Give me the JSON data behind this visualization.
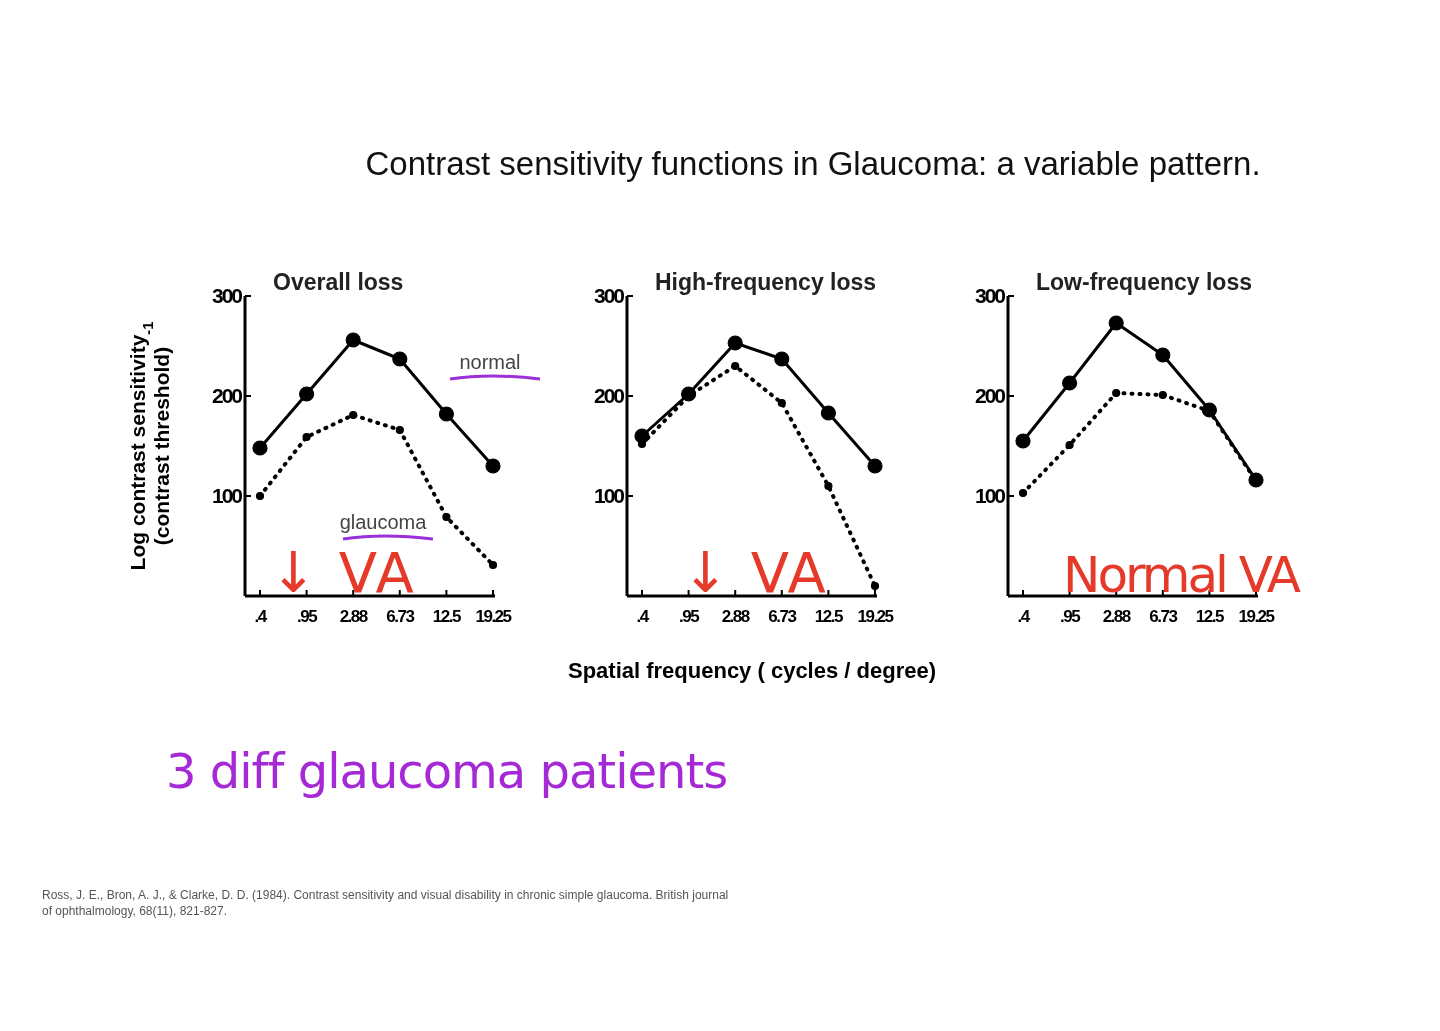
{
  "chart_data": [
    {
      "type": "line",
      "title": "Overall loss",
      "ylabel": "Log contrast sensitivity$_{-1}$\n(contrast threshold)",
      "categories": [
        ".4",
        ".95",
        "2.88",
        "6.73",
        "12.5",
        "19.25"
      ],
      "ylim": [
        0,
        300
      ],
      "yticks": [
        100,
        200,
        300
      ],
      "grid": false,
      "marker": "circle",
      "series": [
        {
          "name": "normal",
          "color": "#000000",
          "line_style": "solid",
          "values": [
            148,
            202,
            256,
            237,
            182,
            130
          ]
        },
        {
          "name": "glaucoma",
          "color": "#000000",
          "line_style": "dotted",
          "values": [
            100,
            159,
            181,
            166,
            79,
            31
          ]
        }
      ],
      "annotations": [
        "Contrast sensitivity functions in Glaucoma: a variable pattern.",
        "↓ VA",
        "3 diff glaucoma patients",
        "Ross, J. E., Bron, A. J., & Clarke, D. D. (1984). Contrast sensitivity and visual disability in chronic simple glaucoma. British journal of ophthalmology, 68(11), 821-827."
      ]
    },
    {
      "type": "line",
      "title": "High-frequency loss",
      "xlabel": "Spatial frequency ( cycles / degree)",
      "categories": [
        ".4",
        ".95",
        "2.88",
        "6.73",
        "12.5",
        "19.25"
      ],
      "ylim": [
        0,
        300
      ],
      "yticks": [
        100,
        200,
        300
      ],
      "grid": false,
      "marker": "circle",
      "series": [
        {
          "color": "#000000",
          "line_style": "solid",
          "values": [
            160,
            202,
            253,
            237,
            183,
            130
          ]
        },
        {
          "color": "#000000",
          "line_style": "dotted",
          "values": [
            152,
            200,
            230,
            193,
            110,
            10
          ]
        }
      ],
      "annotations": [
        "↓ VA"
      ]
    },
    {
      "type": "line",
      "title": "Low-frequency loss",
      "categories": [
        ".4",
        ".95",
        "2.88",
        "6.73",
        "12.5",
        "19.25"
      ],
      "ylim": [
        0,
        300
      ],
      "yticks": [
        100,
        200,
        300
      ],
      "grid": false,
      "marker": "circle",
      "series": [
        {
          "color": "#000000",
          "line_style": "solid",
          "values": [
            155,
            213,
            273,
            241,
            186,
            116
          ]
        },
        {
          "color": "#000000",
          "line_style": "dotted",
          "values": [
            103,
            151,
            203,
            201,
            185,
            115
          ]
        }
      ],
      "annotations": [
        "Normal VA"
      ]
    }
  ]
}
